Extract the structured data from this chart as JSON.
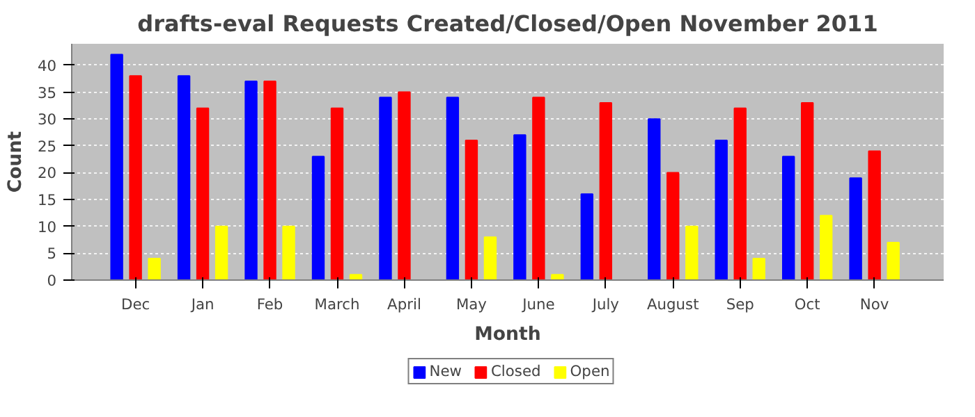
{
  "chart_data": {
    "type": "bar",
    "title": "drafts-eval Requests Created/Closed/Open November 2011",
    "xlabel": "Month",
    "ylabel": "Count",
    "categories": [
      "Dec",
      "Jan",
      "Feb",
      "March",
      "April",
      "May",
      "June",
      "July",
      "August",
      "Sep",
      "Oct",
      "Nov"
    ],
    "series": [
      {
        "name": "New",
        "color": "#0000ff",
        "values": [
          42,
          38,
          37,
          23,
          34,
          34,
          27,
          16,
          30,
          26,
          23,
          19
        ]
      },
      {
        "name": "Closed",
        "color": "#ff0000",
        "values": [
          38,
          32,
          37,
          32,
          35,
          26,
          34,
          33,
          20,
          32,
          33,
          24
        ]
      },
      {
        "name": "Open",
        "color": "#ffff00",
        "values": [
          4,
          10,
          10,
          1,
          0,
          8,
          1,
          0,
          10,
          4,
          12,
          7
        ]
      }
    ],
    "ylim": [
      0,
      44
    ],
    "yticks": [
      0,
      5,
      10,
      15,
      20,
      25,
      30,
      35,
      40
    ],
    "grid": "y",
    "legend": "bottom"
  }
}
